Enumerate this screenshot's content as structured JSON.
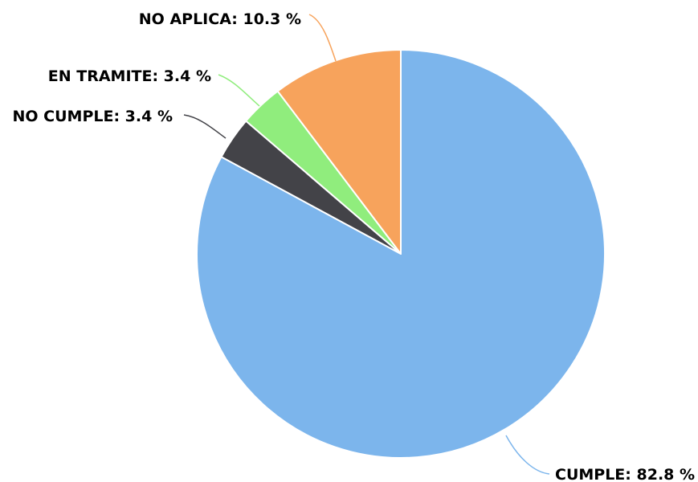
{
  "chart_data": {
    "type": "pie",
    "title": "",
    "slices": [
      {
        "label": "CUMPLE",
        "value": 82.8,
        "display": "CUMPLE: 82.8 %",
        "color": "#7cb5ec"
      },
      {
        "label": "NO CUMPLE",
        "value": 3.4,
        "display": "NO CUMPLE: 3.4 %",
        "color": "#434348"
      },
      {
        "label": "EN TRAMITE",
        "value": 3.4,
        "display": "EN TRAMITE: 3.4 %",
        "color": "#90ed7d"
      },
      {
        "label": "NO APLICA",
        "value": 10.3,
        "display": "NO APLICA: 10.3 %",
        "color": "#f7a35c"
      }
    ],
    "start_angle_deg": 0,
    "direction": "clockwise",
    "legend": "none",
    "data_labels": "outside-with-connectors"
  }
}
